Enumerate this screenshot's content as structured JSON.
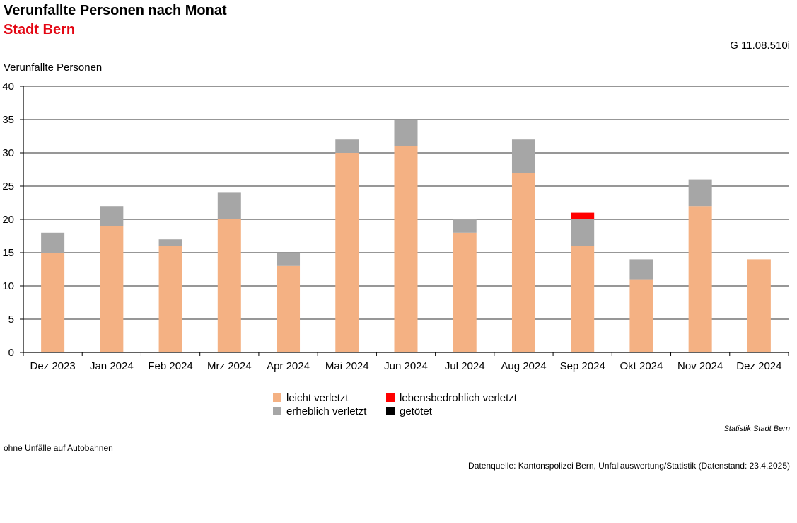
{
  "header": {
    "title": "Verunfallte Personen nach Monat",
    "subtitle": "Stadt Bern",
    "code": "G 11.08.510i"
  },
  "footer": {
    "source_org": "Statistik Stadt Bern",
    "note": "ohne Unfälle auf Autobahnen",
    "datasource": "Datenquelle: Kantonspolizei Bern, Unfallauswertung/Statistik (Datenstand: 23.4.2025)"
  },
  "colors": {
    "leicht": "#f4b183",
    "erheblich": "#a6a6a6",
    "lebensbedrohlich": "#ff0000",
    "getoetet": "#000000",
    "subtitle": "#e30613",
    "grid": "#595959"
  },
  "chart_data": {
    "type": "bar",
    "stacked": true,
    "ylabel": "Verunfallte Personen",
    "ylim": [
      0,
      40
    ],
    "yticks": [
      0,
      5,
      10,
      15,
      20,
      25,
      30,
      35,
      40
    ],
    "grid": true,
    "legend_position": "bottom",
    "categories": [
      "Dez 2023",
      "Jan 2024",
      "Feb 2024",
      "Mrz 2024",
      "Apr 2024",
      "Mai 2024",
      "Jun 2024",
      "Jul 2024",
      "Aug 2024",
      "Sep 2024",
      "Okt 2024",
      "Nov 2024",
      "Dez 2024"
    ],
    "series": [
      {
        "name": "leicht verletzt",
        "color": "#f4b183",
        "values": [
          15,
          19,
          16,
          20,
          13,
          30,
          31,
          18,
          27,
          16,
          11,
          22,
          14
        ]
      },
      {
        "name": "erheblich verletzt",
        "color": "#a6a6a6",
        "values": [
          3,
          3,
          1,
          4,
          2,
          2,
          4,
          2,
          5,
          4,
          3,
          4,
          0
        ]
      },
      {
        "name": "lebensbedrohlich verletzt",
        "color": "#ff0000",
        "values": [
          0,
          0,
          0,
          0,
          0,
          0,
          0,
          0,
          0,
          1,
          0,
          0,
          0
        ]
      },
      {
        "name": "getötet",
        "color": "#000000",
        "values": [
          0,
          0,
          0,
          0,
          0,
          0,
          0,
          0,
          0,
          0,
          0,
          0,
          0
        ]
      }
    ]
  }
}
